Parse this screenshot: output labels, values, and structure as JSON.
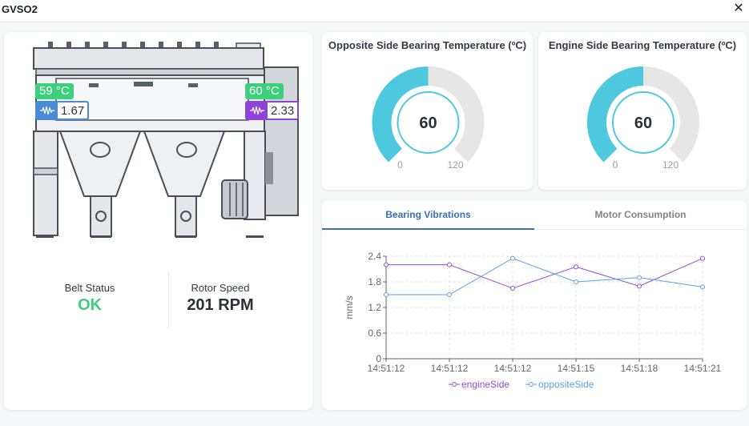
{
  "window": {
    "title": "GVSO2",
    "close_icon": "close-icon"
  },
  "machine": {
    "left_temp": "59 °C",
    "left_vibration": "1.67",
    "right_temp": "60 °C",
    "right_vibration": "2.33",
    "colors": {
      "temp_chip": "#3ecf7c",
      "left_vib": "#4a8ad6",
      "right_vib": "#8e44d8"
    }
  },
  "status": {
    "belt_label": "Belt Status",
    "belt_value": "OK",
    "belt_color": "#3ecf7c",
    "rotor_label": "Rotor Speed",
    "rotor_value": "201 RPM"
  },
  "gauges": [
    {
      "title": "Opposite Side Bearing Temperature (ºC)",
      "value": 60,
      "value_text": "60",
      "min": 0,
      "max": 120,
      "min_text": "0",
      "max_text": "120"
    },
    {
      "title": "Engine Side Bearing Temperature (ºC)",
      "value": 60,
      "value_text": "60",
      "min": 0,
      "max": 120,
      "min_text": "0",
      "max_text": "120"
    }
  ],
  "gauge_colors": {
    "fill": "#4ec8de",
    "track": "#e6e6e6",
    "ring": "#4ec8de"
  },
  "tabs": [
    {
      "label": "Bearing Vibrations",
      "active": true
    },
    {
      "label": "Motor Consumption",
      "active": false
    }
  ],
  "chart_data": {
    "type": "line",
    "x": [
      "14:51:12",
      "14:51:12",
      "14:51:12",
      "14:51:15",
      "14:51:18",
      "14:51:21"
    ],
    "ylabel": "mm/s",
    "ylim": [
      0,
      2.4
    ],
    "yticks": [
      "0",
      "0.6",
      "1.2",
      "1.8",
      "2.4"
    ],
    "grid": true,
    "legend": "bottom",
    "series": [
      {
        "name": "engineSide",
        "color": "#8e4fd8",
        "values": [
          2.2,
          2.2,
          1.65,
          2.15,
          1.7,
          2.35
        ]
      },
      {
        "name": "oppositeSide",
        "color": "#5aa0e0",
        "values": [
          1.5,
          1.5,
          2.35,
          1.8,
          1.9,
          1.68
        ]
      }
    ]
  }
}
